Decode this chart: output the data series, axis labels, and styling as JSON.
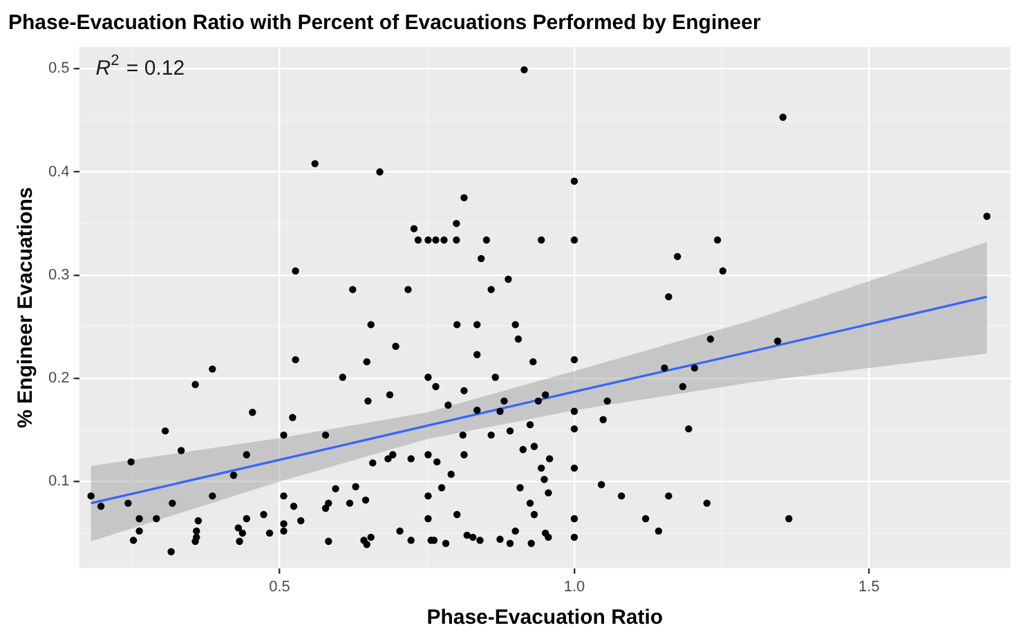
{
  "chart_data": {
    "type": "scatter",
    "title": "Phase-Evacuation Ratio with Percent of Evacuations Performed by Engineer",
    "xlabel": "Phase-Evacuation Ratio",
    "ylabel": "% Engineer Evacuations",
    "annotations": [
      "R$^{2}$ = 0.12"
    ],
    "xlim": [
      0.16,
      1.74
    ],
    "ylim": [
      0.016,
      0.521
    ],
    "xticks": [
      {
        "value": 0.25,
        "label": null
      },
      {
        "value": 0.5,
        "label": "0.5"
      },
      {
        "value": 0.75,
        "label": null
      },
      {
        "value": 1.0,
        "label": "1.0"
      },
      {
        "value": 1.25,
        "label": null
      },
      {
        "value": 1.5,
        "label": "1.5"
      }
    ],
    "yticks": [
      {
        "value": 0.05,
        "label": null
      },
      0.1,
      {
        "value": 0.15,
        "label": null
      },
      0.2,
      {
        "value": 0.25,
        "label": null
      },
      0.3,
      {
        "value": 0.35,
        "label": null
      },
      0.4,
      {
        "value": 0.45,
        "label": null
      },
      0.5
    ],
    "grid": true,
    "legend": false,
    "marker": "circle",
    "series": [
      {
        "color": "#000000",
        "x": [
          0.56,
          0.67,
          0.728,
          0.735,
          0.752,
          0.527,
          0.624,
          0.718,
          0.915,
          1.0,
          0.813,
          0.8,
          0.765,
          0.779,
          0.8,
          0.851,
          0.944,
          1.0,
          1.243,
          0.842,
          1.175,
          1.252,
          0.888,
          0.859,
          1.16,
          1.354,
          1.7,
          1.345,
          1.364,
          0.655,
          0.697,
          0.527,
          0.648,
          0.386,
          0.357,
          0.607,
          0.752,
          0.65,
          0.687,
          0.454,
          0.522,
          0.306,
          0.507,
          0.578,
          0.333,
          0.444,
          0.248,
          0.684,
          0.692,
          0.723,
          0.752,
          0.658,
          0.422,
          0.595,
          0.629,
          0.18,
          0.197,
          0.243,
          0.318,
          0.386,
          0.507,
          0.578,
          0.583,
          0.619,
          0.646,
          0.752,
          0.524,
          0.262,
          0.291,
          0.473,
          0.444,
          0.362,
          0.536,
          0.752,
          0.262,
          0.359,
          0.43,
          0.437,
          0.483,
          0.507,
          0.507,
          0.704,
          0.252,
          0.359,
          0.357,
          0.432,
          0.583,
          0.643,
          0.648,
          0.655,
          0.723,
          0.757,
          0.316,
          0.801,
          0.835,
          0.9,
          0.905,
          0.835,
          0.93,
          1.0,
          1.231,
          1.153,
          1.204,
          1.184,
          1.194,
          0.765,
          0.866,
          0.813,
          0.786,
          0.881,
          0.835,
          0.874,
          0.939,
          0.951,
          1.0,
          1.056,
          1.049,
          1.0,
          0.925,
          0.811,
          0.859,
          0.891,
          0.767,
          0.813,
          0.913,
          0.932,
          0.958,
          0.944,
          0.949,
          0.956,
          0.791,
          0.775,
          0.908,
          0.925,
          0.932,
          1.0,
          1.046,
          1.08,
          1.16,
          1.225,
          0.801,
          1.121,
          1.143,
          1.0,
          1.0,
          0.762,
          0.782,
          0.818,
          0.828,
          0.84,
          0.874,
          0.891,
          0.9,
          0.927,
          0.951,
          0.956
        ],
        "values": [
          0.408,
          0.4,
          0.345,
          0.334,
          0.334,
          0.304,
          0.286,
          0.286,
          0.499,
          0.391,
          0.375,
          0.35,
          0.334,
          0.334,
          0.334,
          0.334,
          0.334,
          0.334,
          0.334,
          0.316,
          0.318,
          0.304,
          0.296,
          0.286,
          0.279,
          0.453,
          0.357,
          0.236,
          0.064,
          0.252,
          0.231,
          0.218,
          0.216,
          0.209,
          0.194,
          0.201,
          0.201,
          0.178,
          0.184,
          0.167,
          0.162,
          0.149,
          0.145,
          0.145,
          0.13,
          0.126,
          0.119,
          0.122,
          0.126,
          0.122,
          0.126,
          0.118,
          0.106,
          0.093,
          0.095,
          0.086,
          0.076,
          0.079,
          0.079,
          0.086,
          0.086,
          0.074,
          0.079,
          0.079,
          0.082,
          0.086,
          0.076,
          0.064,
          0.064,
          0.068,
          0.064,
          0.062,
          0.062,
          0.064,
          0.052,
          0.052,
          0.055,
          0.05,
          0.05,
          0.059,
          0.052,
          0.052,
          0.043,
          0.046,
          0.042,
          0.042,
          0.042,
          0.043,
          0.039,
          0.046,
          0.043,
          0.043,
          0.032,
          0.252,
          0.252,
          0.252,
          0.238,
          0.223,
          0.216,
          0.218,
          0.238,
          0.21,
          0.21,
          0.192,
          0.151,
          0.192,
          0.201,
          0.188,
          0.174,
          0.178,
          0.169,
          0.168,
          0.178,
          0.184,
          0.168,
          0.178,
          0.16,
          0.151,
          0.155,
          0.145,
          0.145,
          0.149,
          0.119,
          0.126,
          0.131,
          0.134,
          0.122,
          0.113,
          0.102,
          0.089,
          0.107,
          0.094,
          0.094,
          0.079,
          0.068,
          0.113,
          0.097,
          0.086,
          0.086,
          0.079,
          0.068,
          0.064,
          0.052,
          0.064,
          0.046,
          0.043,
          0.04,
          0.048,
          0.046,
          0.043,
          0.044,
          0.04,
          0.052,
          0.04,
          0.05,
          0.046
        ]
      },
      {
        "type": "line",
        "color": "#3366ff",
        "marker": "none",
        "x": [
          0.18,
          0.5,
          0.75,
          1.0,
          1.3,
          1.7
        ],
        "values": [
          0.079,
          0.121,
          0.154,
          0.187,
          0.226,
          0.279
        ],
        "lower": [
          0.042,
          0.1,
          0.141,
          0.169,
          0.196,
          0.224
        ],
        "upper": [
          0.115,
          0.142,
          0.167,
          0.207,
          0.256,
          0.332
        ]
      }
    ]
  }
}
